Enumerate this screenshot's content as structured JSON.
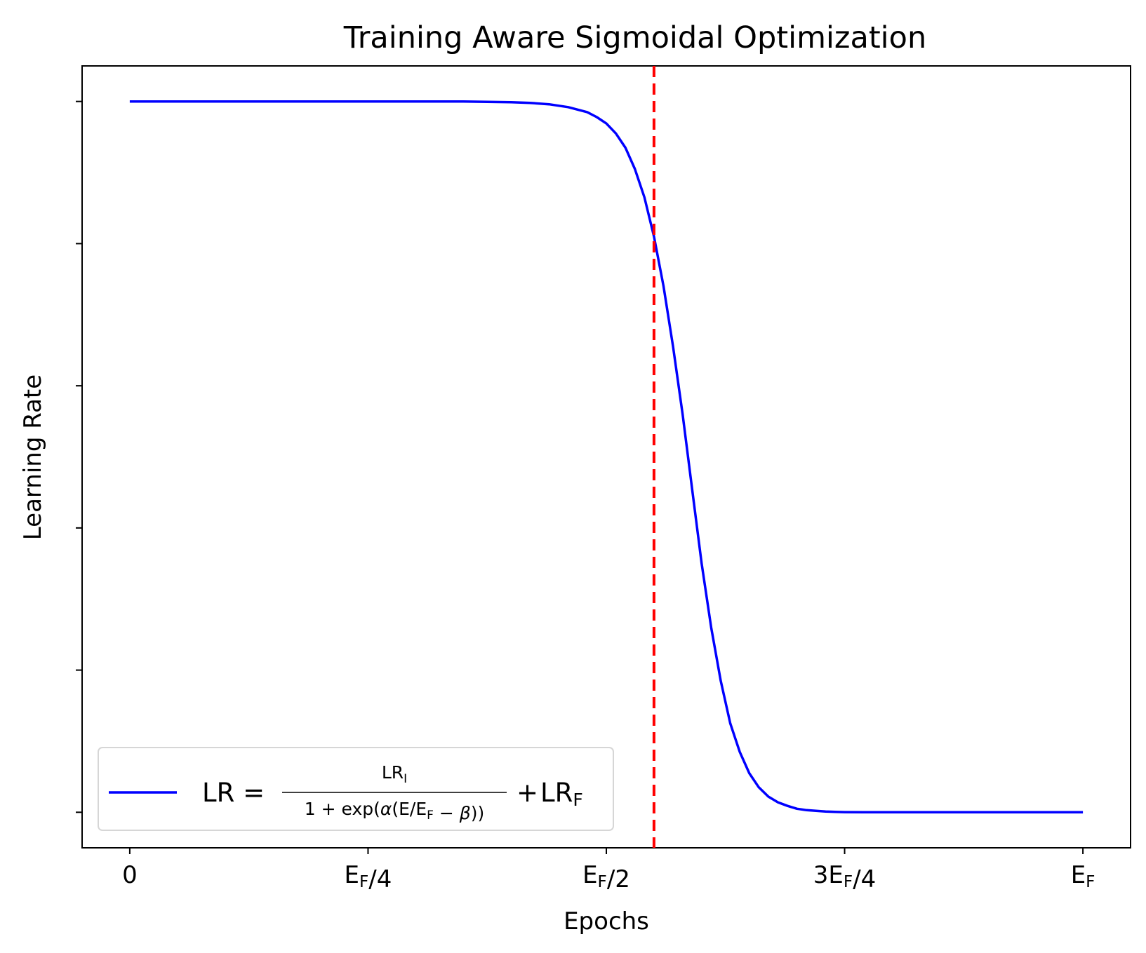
{
  "chart_data": {
    "type": "line",
    "title": "Training Aware Sigmoidal Optimization",
    "xlabel": "Epochs",
    "ylabel": "Learning Rate",
    "xlim": [
      -0.05,
      1.05
    ],
    "ylim": [
      -0.05,
      1.05
    ],
    "y_ticks_labeled": false,
    "y_tick_count": 6,
    "x_ticks": [
      {
        "value": 0,
        "parts": [
          {
            "t": "0"
          }
        ]
      },
      {
        "value": 0.25,
        "parts": [
          {
            "t": "E"
          },
          {
            "t": "F",
            "sub": true
          },
          {
            "t": "/4"
          }
        ]
      },
      {
        "value": 0.5,
        "parts": [
          {
            "t": "E"
          },
          {
            "t": "F",
            "sub": true
          },
          {
            "t": "/2"
          }
        ]
      },
      {
        "value": 0.75,
        "parts": [
          {
            "t": "3E"
          },
          {
            "t": "F",
            "sub": true
          },
          {
            "t": "/4"
          }
        ]
      },
      {
        "value": 1.0,
        "parts": [
          {
            "t": "E"
          },
          {
            "t": "F",
            "sub": true
          }
        ]
      }
    ],
    "series": [
      {
        "color": "#0000ff",
        "style": "solid",
        "legend": true,
        "x": [
          0,
          0.05,
          0.1,
          0.15,
          0.2,
          0.25,
          0.3,
          0.35,
          0.4,
          0.42,
          0.44,
          0.46,
          0.48,
          0.49,
          0.5,
          0.51,
          0.52,
          0.53,
          0.54,
          0.55,
          0.56,
          0.57,
          0.58,
          0.59,
          0.6,
          0.61,
          0.62,
          0.63,
          0.64,
          0.65,
          0.66,
          0.67,
          0.68,
          0.69,
          0.7,
          0.71,
          0.72,
          0.73,
          0.74,
          0.75,
          0.77,
          0.8,
          0.85,
          0.9,
          0.95,
          1.0
        ],
        "y": [
          1.0,
          1.0,
          1.0,
          1.0,
          1.0,
          1.0,
          1.0,
          1.0,
          0.999,
          0.998,
          0.996,
          0.992,
          0.985,
          0.978,
          0.969,
          0.955,
          0.935,
          0.905,
          0.865,
          0.81,
          0.74,
          0.655,
          0.56,
          0.455,
          0.35,
          0.26,
          0.185,
          0.125,
          0.085,
          0.055,
          0.035,
          0.022,
          0.014,
          0.009,
          0.005,
          0.003,
          0.002,
          0.001,
          0.0005,
          0.0002,
          0.0,
          0.0,
          0.0,
          0.0,
          0.0,
          0.0
        ]
      },
      {
        "color": "#ff0000",
        "style": "dashed",
        "legend": false,
        "x_vertical": 0.55
      }
    ],
    "legend": {
      "placement": "lower-left",
      "lhs": "LR",
      "eq": "=",
      "num": [
        {
          "t": "LR"
        },
        {
          "t": "I",
          "sub": true
        }
      ],
      "den": [
        {
          "t": "1 + exp("
        },
        {
          "t": "α",
          "italic": true
        },
        {
          "t": "(E/E"
        },
        {
          "t": "F",
          "sub": true
        },
        {
          "t": " − "
        },
        {
          "t": "β",
          "italic": true
        },
        {
          "t": "))"
        }
      ],
      "plus": "+",
      "rhs": [
        {
          "t": "LR"
        },
        {
          "t": "F",
          "sub": true
        }
      ]
    }
  }
}
